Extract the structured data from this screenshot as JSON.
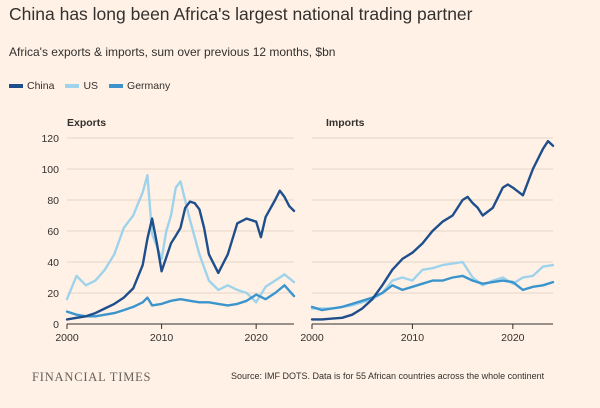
{
  "title": "China has long been Africa's largest national trading partner",
  "subtitle": "Africa's exports & imports, sum over previous 12 months, $bn",
  "legend": [
    {
      "name": "China",
      "color": "#1f4e8c"
    },
    {
      "name": "US",
      "color": "#9fd3ec"
    },
    {
      "name": "Germany",
      "color": "#3b95cc"
    }
  ],
  "footer": {
    "logo": "FINANCIAL TIMES",
    "source": "Source: IMF DOTS. Data is for 55 African countries across the whole continent"
  },
  "chart_data": [
    {
      "type": "line",
      "title": "Exports",
      "xlim": [
        2000,
        2024
      ],
      "ylim": [
        0,
        120
      ],
      "yticks": [
        0,
        20,
        40,
        60,
        80,
        100,
        120
      ],
      "xticks": [
        2000,
        2010,
        2020
      ],
      "grid": true,
      "series": [
        {
          "name": "China",
          "color": "#1f4e8c",
          "x": [
            2000,
            2001,
            2002,
            2003,
            2004,
            2005,
            2006,
            2007,
            2008,
            2008.5,
            2009,
            2009.5,
            2010,
            2011,
            2011.5,
            2012,
            2012.5,
            2013,
            2013.5,
            2014,
            2014.5,
            2015,
            2016,
            2017,
            2018,
            2019,
            2020,
            2020.5,
            2021,
            2022,
            2022.5,
            2023,
            2023.5,
            2024
          ],
          "y": [
            3,
            4,
            5,
            7,
            10,
            13,
            17,
            23,
            38,
            55,
            68,
            52,
            34,
            52,
            57,
            62,
            75,
            79,
            78,
            74,
            62,
            45,
            33,
            45,
            65,
            68,
            66,
            56,
            69,
            80,
            86,
            82,
            76,
            73
          ]
        },
        {
          "name": "US",
          "color": "#9fd3ec",
          "x": [
            2000,
            2001,
            2002,
            2003,
            2004,
            2005,
            2006,
            2007,
            2008,
            2008.5,
            2009,
            2010,
            2010.5,
            2011,
            2011.5,
            2012,
            2013,
            2014,
            2015,
            2016,
            2017,
            2018,
            2019,
            2020,
            2021,
            2022,
            2023,
            2024
          ],
          "y": [
            16,
            31,
            25,
            28,
            35,
            45,
            62,
            70,
            85,
            96,
            58,
            42,
            60,
            70,
            88,
            92,
            67,
            45,
            28,
            22,
            25,
            22,
            20,
            14,
            24,
            28,
            32,
            27
          ]
        },
        {
          "name": "Germany",
          "color": "#3b95cc",
          "x": [
            2000,
            2001,
            2002,
            2003,
            2004,
            2005,
            2006,
            2007,
            2008,
            2008.5,
            2009,
            2010,
            2011,
            2012,
            2013,
            2014,
            2015,
            2016,
            2017,
            2018,
            2019,
            2020,
            2021,
            2022,
            2023,
            2024
          ],
          "y": [
            8,
            6,
            5,
            5,
            6,
            7,
            9,
            11,
            14,
            17,
            12,
            13,
            15,
            16,
            15,
            14,
            14,
            13,
            12,
            13,
            15,
            19,
            16,
            20,
            25,
            18
          ]
        }
      ]
    },
    {
      "type": "line",
      "title": "Imports",
      "xlim": [
        2000,
        2024
      ],
      "ylim": [
        0,
        120
      ],
      "yticks": [
        0,
        20,
        40,
        60,
        80,
        100,
        120
      ],
      "xticks": [
        2000,
        2010,
        2020
      ],
      "grid": true,
      "series": [
        {
          "name": "China",
          "color": "#1f4e8c",
          "x": [
            2000,
            2001,
            2002,
            2003,
            2004,
            2005,
            2006,
            2007,
            2008,
            2009,
            2010,
            2011,
            2012,
            2013,
            2014,
            2015,
            2015.5,
            2016,
            2016.5,
            2017,
            2018,
            2019,
            2019.5,
            2020,
            2021,
            2022,
            2023,
            2023.5,
            2024
          ],
          "y": [
            3,
            3,
            3.5,
            4,
            6,
            10,
            16,
            25,
            35,
            42,
            46,
            52,
            60,
            66,
            70,
            80,
            82,
            78,
            75,
            70,
            75,
            88,
            90,
            88,
            83,
            100,
            113,
            118,
            115
          ]
        },
        {
          "name": "US",
          "color": "#9fd3ec",
          "x": [
            2000,
            2001,
            2002,
            2003,
            2004,
            2005,
            2006,
            2007,
            2008,
            2009,
            2010,
            2011,
            2012,
            2013,
            2014,
            2015,
            2016,
            2017,
            2018,
            2019,
            2020,
            2021,
            2022,
            2023,
            2024
          ],
          "y": [
            10,
            10,
            10,
            11,
            12,
            14,
            16,
            20,
            28,
            30,
            28,
            35,
            36,
            38,
            39,
            40,
            30,
            25,
            28,
            30,
            26,
            30,
            31,
            37,
            38
          ]
        },
        {
          "name": "Germany",
          "color": "#3b95cc",
          "x": [
            2000,
            2001,
            2002,
            2003,
            2004,
            2005,
            2006,
            2007,
            2008,
            2009,
            2010,
            2011,
            2012,
            2013,
            2014,
            2015,
            2016,
            2017,
            2018,
            2019,
            2020,
            2021,
            2022,
            2023,
            2024
          ],
          "y": [
            11,
            9,
            10,
            11,
            13,
            15,
            17,
            20,
            25,
            22,
            24,
            26,
            28,
            28,
            30,
            31,
            28,
            26,
            27,
            28,
            27,
            22,
            24,
            25,
            27
          ]
        }
      ]
    }
  ]
}
